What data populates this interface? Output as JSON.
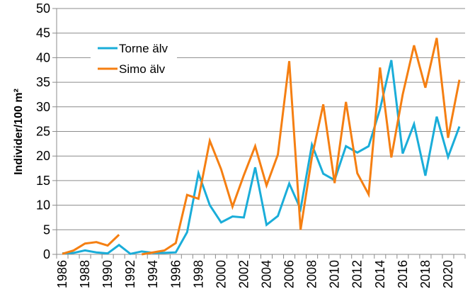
{
  "chart_data": {
    "type": "line",
    "title": "",
    "xlabel": "",
    "ylabel": "Individer/100 m²",
    "ylim": [
      0,
      50
    ],
    "yticks": [
      0,
      5,
      10,
      15,
      20,
      25,
      30,
      35,
      40,
      45,
      50
    ],
    "xticks_labeled": [
      1986,
      1988,
      1990,
      1992,
      1994,
      1996,
      1998,
      2000,
      2002,
      2004,
      2006,
      2008,
      2010,
      2012,
      2014,
      2016,
      2018,
      2020
    ],
    "grid": "horizontal",
    "legend_position": "top-left",
    "x": [
      1986,
      1987,
      1988,
      1989,
      1990,
      1991,
      1992,
      1993,
      1994,
      1995,
      1996,
      1997,
      1998,
      1999,
      2000,
      2001,
      2002,
      2003,
      2004,
      2005,
      2006,
      2007,
      2008,
      2009,
      2010,
      2011,
      2012,
      2013,
      2014,
      2015,
      2016,
      2017,
      2018,
      2019,
      2020,
      2021
    ],
    "series": [
      {
        "name": "Torne älv",
        "color": "#1AADD9",
        "values": [
          0.2,
          0.3,
          0.8,
          0.4,
          0.2,
          1.9,
          0.1,
          0.6,
          0.3,
          0.3,
          0.4,
          4.5,
          16.5,
          10.0,
          6.5,
          7.7,
          7.5,
          17.7,
          6.0,
          7.8,
          14.4,
          9.2,
          22.3,
          16.4,
          15.1,
          22.0,
          20.7,
          22.0,
          29.5,
          39.5,
          20.5,
          26.5,
          16.0,
          28.0,
          19.8,
          26.0
        ]
      },
      {
        "name": "Simo älv",
        "color": "#F57F12",
        "values": [
          0.1,
          0.8,
          2.2,
          2.5,
          1.8,
          4.0,
          null,
          0.0,
          0.4,
          0.8,
          2.3,
          12.1,
          11.3,
          23.1,
          17.3,
          9.7,
          16.1,
          22.0,
          14.0,
          20.3,
          39.3,
          5.0,
          19.8,
          30.5,
          14.5,
          31.0,
          16.5,
          12.2,
          38.0,
          19.7,
          32.5,
          42.5,
          33.9,
          44.0,
          23.7,
          35.5
        ]
      }
    ]
  }
}
